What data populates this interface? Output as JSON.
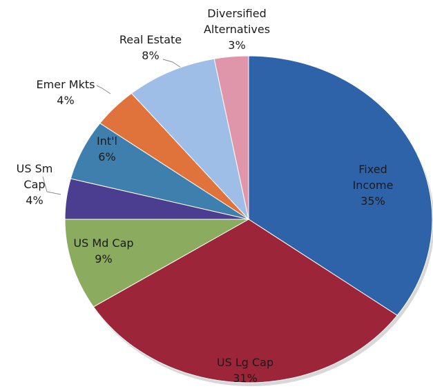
{
  "chart_data": {
    "type": "pie",
    "categories": [
      "Fixed Income",
      "US Lg Cap",
      "US Md Cap",
      "US Sm\nCap",
      "Int'l",
      "Emer Mkts",
      "Real Estate",
      "Diversified\nAlternatives"
    ],
    "values": [
      35,
      31,
      9,
      4,
      6,
      4,
      8,
      3
    ],
    "value_labels": [
      "35%",
      "31%",
      "9%",
      "4%",
      "6%",
      "4%",
      "8%",
      "3%"
    ],
    "colors": [
      "#2f63a9",
      "#9c2539",
      "#8bab5f",
      "#4b3d8f",
      "#3f7fae",
      "#e0733b",
      "#9ebee7",
      "#e096aa"
    ]
  }
}
